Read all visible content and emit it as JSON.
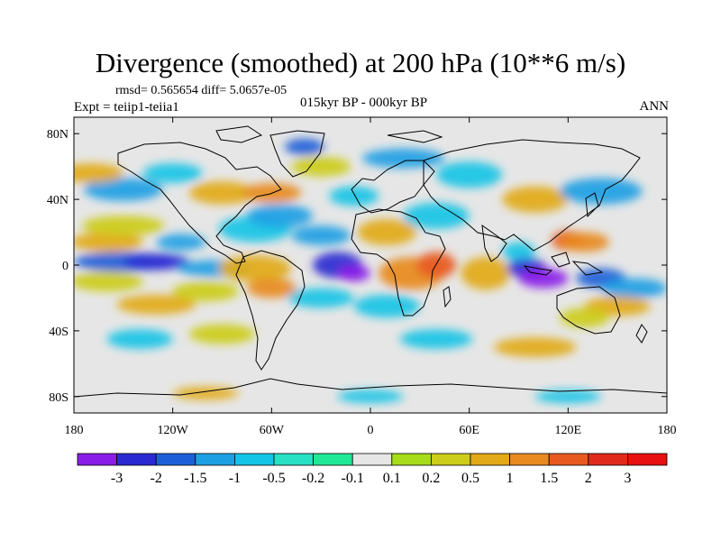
{
  "header": {
    "title": "Divergence (smoothed) at 200 hPa (10**6 m/s)",
    "stats": "rmsd= 0.565654 diff= 5.0657e-05",
    "experiment": "Expt = teiip1-teiia1",
    "comparison": "015kyr BP - 000kyr BP",
    "season": "ANN"
  },
  "map": {
    "type": "filled-contour world map",
    "projection": "cylindrical equidistant",
    "lon_range": [
      -180,
      180
    ],
    "lat_range": [
      -90,
      90
    ],
    "x_ticks": [
      "180",
      "120W",
      "60W",
      "0",
      "60E",
      "120E",
      "180"
    ],
    "y_ticks": [
      "80N",
      "40N",
      "0",
      "40S",
      "80S"
    ],
    "background_color": "#e6e6e6",
    "coastline_color": "#000000"
  },
  "colorbar": {
    "labels": [
      "-3",
      "-2",
      "-1.5",
      "-1",
      "-0.5",
      "-0.2",
      "-0.1",
      "0.1",
      "0.2",
      "0.5",
      "1",
      "1.5",
      "2",
      "3"
    ],
    "colors": [
      "#8a1de8",
      "#2a2ad2",
      "#1d5fd8",
      "#1ea0e4",
      "#13c4e6",
      "#28e0c4",
      "#1ee896",
      "#e6e6e6",
      "#a6dc1a",
      "#cccc1a",
      "#e2aa18",
      "#e88a1e",
      "#e85a20",
      "#e22a1c",
      "#e81010"
    ]
  }
}
